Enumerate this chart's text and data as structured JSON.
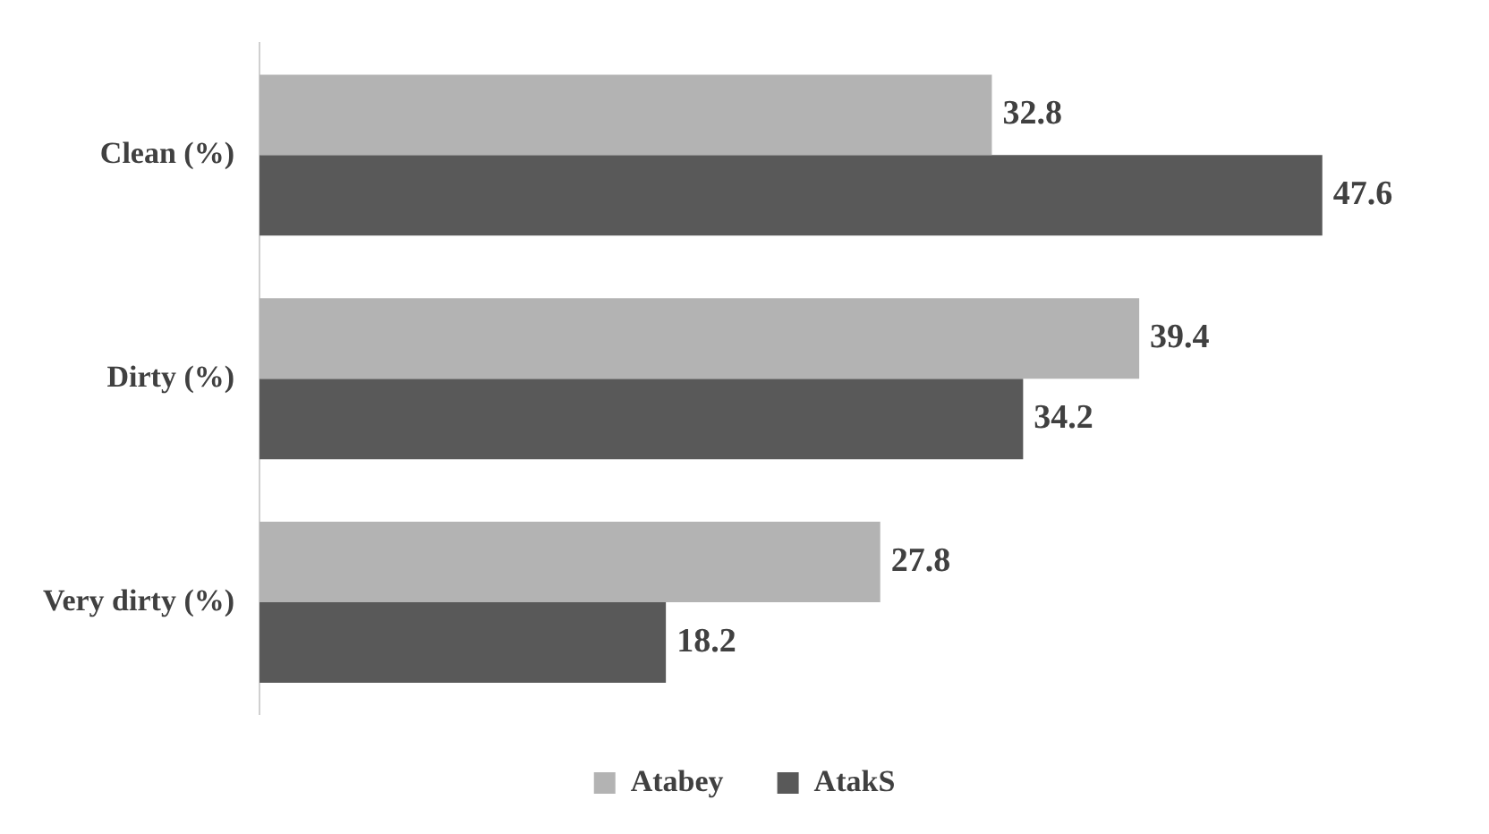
{
  "chart_data": {
    "type": "bar",
    "orientation": "horizontal",
    "categories": [
      "Clean (%)",
      "Dirty (%)",
      "Very dirty (%)"
    ],
    "series": [
      {
        "name": "Atabey",
        "color": "#b3b3b3",
        "values": [
          32.8,
          39.4,
          27.8
        ]
      },
      {
        "name": "AtakS",
        "color": "#595959",
        "values": [
          47.6,
          34.2,
          18.2
        ]
      }
    ],
    "data_labels": true,
    "legend": "bottom"
  }
}
